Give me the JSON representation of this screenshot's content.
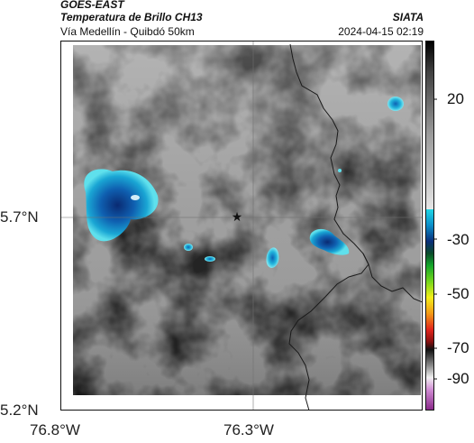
{
  "header": {
    "satellite": "GOES-EAST",
    "product": "Temperatura de Brillo CH13",
    "location": "Vía Medellín - Quibdó 50km",
    "agency": "SIATA",
    "datetime": "2024-04-15 02:19"
  },
  "map": {
    "lat_labels": [
      "5.7°N",
      "5.2°N"
    ],
    "lon_labels": [
      "76.8°W",
      "76.3°W"
    ],
    "marker_icon": "star-icon"
  },
  "colorbar": {
    "ticks": [
      "20",
      "-30",
      "-50",
      "-70",
      "-90"
    ]
  },
  "colors": {
    "storm_core": "#0a2f7a",
    "storm_edge": "#22c3dc",
    "border": "#1a1a1a"
  }
}
